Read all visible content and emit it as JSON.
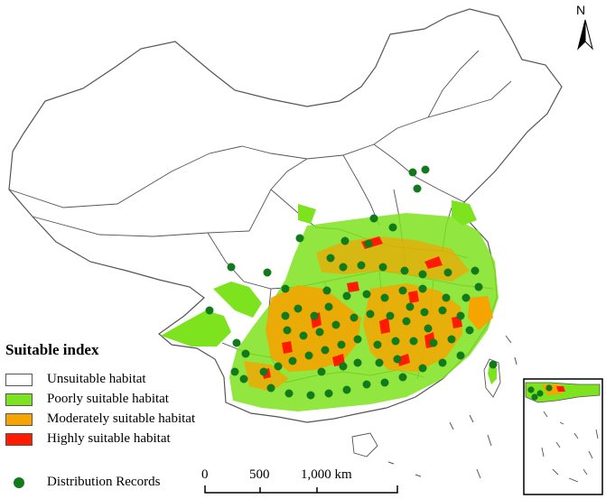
{
  "legend": {
    "title": "Suitable index",
    "items": [
      {
        "label": "Unsuitable habitat",
        "color": "#ffffff"
      },
      {
        "label": "Poorly suitable habitat",
        "color": "#7ee31f"
      },
      {
        "label": "Moderately suitable habitat",
        "color": "#f5a400"
      },
      {
        "label": "Highly suitable habitat",
        "color": "#ff1a00"
      }
    ],
    "records": {
      "label": "Distribution Records",
      "color": "#117a1b"
    }
  },
  "scale_bar": {
    "ticks": [
      "0",
      "500",
      "1,000 km"
    ]
  },
  "north_arrow": {
    "label": "N"
  },
  "colors": {
    "boundary": "#555555",
    "record": "#117a1b"
  }
}
